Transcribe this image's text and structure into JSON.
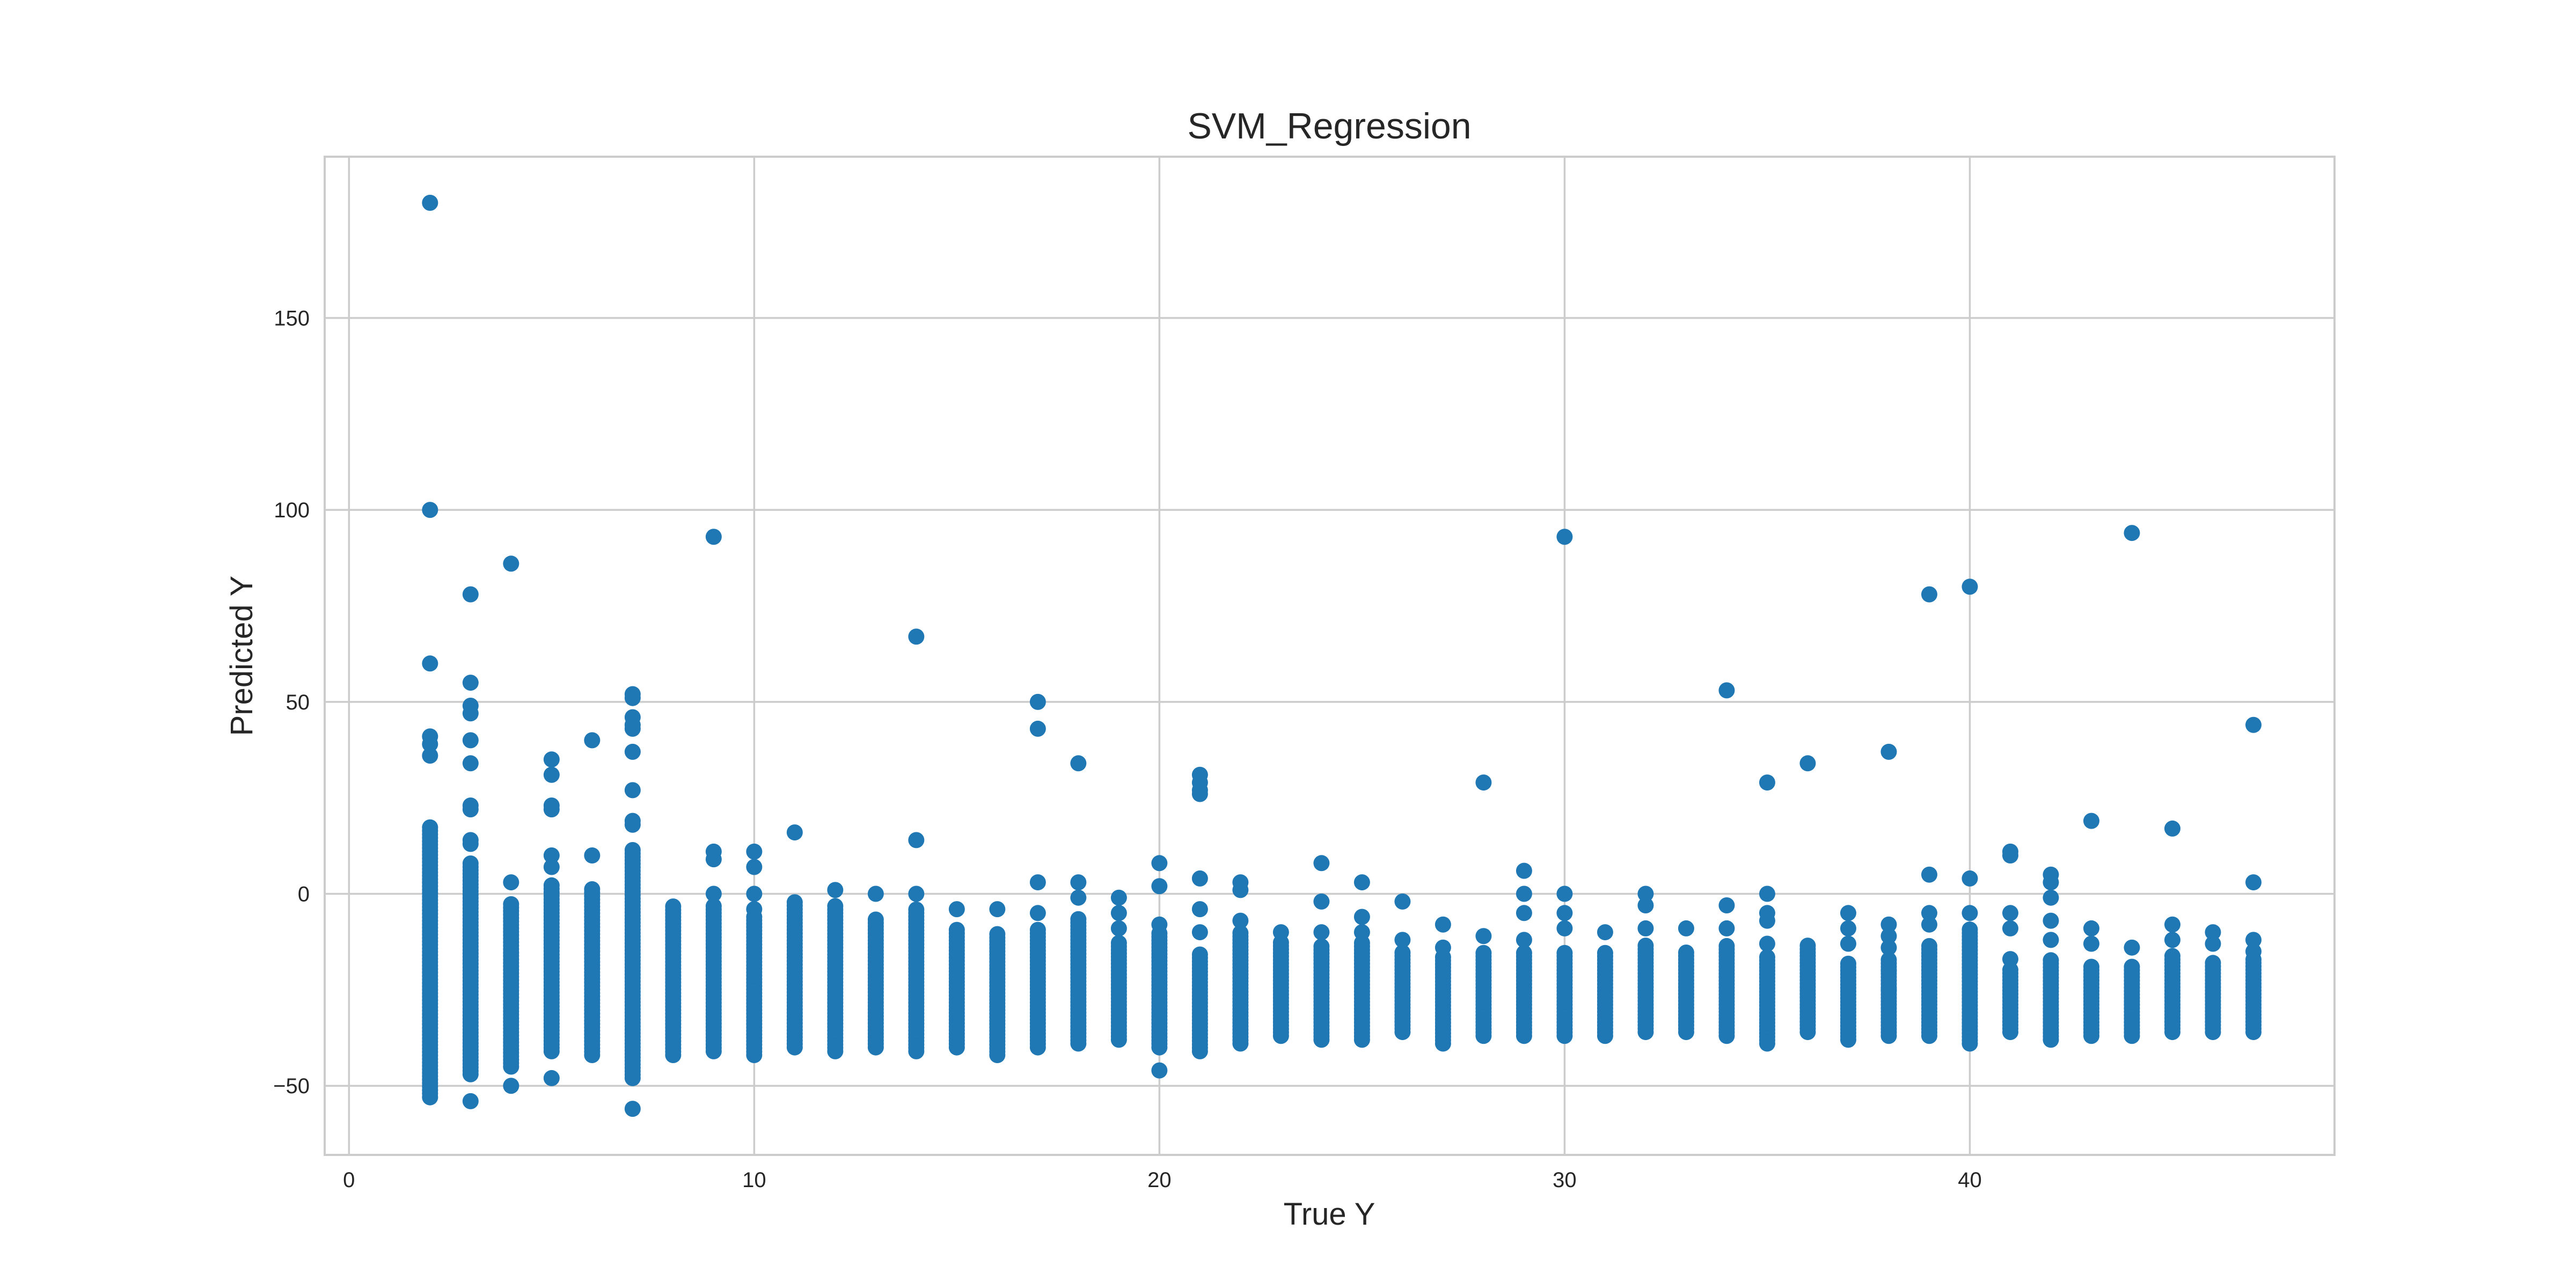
{
  "chart_data": {
    "type": "scatter",
    "title": "SVM_Regression",
    "xlabel": "True Y",
    "ylabel": "Predicted Y",
    "xlim": [
      -0.6,
      49
    ],
    "ylim": [
      -68,
      192
    ],
    "xticks": [
      0,
      10,
      20,
      30,
      40
    ],
    "yticks": [
      -50,
      0,
      50,
      100,
      150
    ],
    "grid": true,
    "color": "#1f77b4",
    "series": [
      {
        "columns": [
          {
            "x": 2,
            "low": -52,
            "high": 18,
            "outliers": [
              180,
              100,
              60,
              41,
              39,
              36,
              -53
            ]
          },
          {
            "x": 3,
            "low": -47,
            "high": 8,
            "outliers": [
              78,
              55,
              49,
              47,
              40,
              34,
              23,
              22,
              14,
              13,
              -54
            ]
          },
          {
            "x": 4,
            "low": -45,
            "high": -2,
            "outliers": [
              86,
              3,
              -50
            ]
          },
          {
            "x": 5,
            "low": -41,
            "high": 3,
            "outliers": [
              35,
              31,
              23,
              22,
              10,
              7,
              -48
            ]
          },
          {
            "x": 6,
            "low": -42,
            "high": 2,
            "outliers": [
              40,
              10
            ]
          },
          {
            "x": 7,
            "low": -48,
            "high": 12,
            "outliers": [
              52,
              51,
              46,
              44,
              43,
              37,
              27,
              19,
              18,
              -56
            ]
          },
          {
            "x": 8,
            "low": -42,
            "high": -3,
            "outliers": []
          },
          {
            "x": 9,
            "low": -41,
            "high": -3,
            "outliers": [
              93,
              11,
              9,
              0
            ]
          },
          {
            "x": 10,
            "low": -42,
            "high": -6,
            "outliers": [
              11,
              7,
              0,
              -4
            ]
          },
          {
            "x": 11,
            "low": -40,
            "high": -2,
            "outliers": [
              16
            ]
          },
          {
            "x": 12,
            "low": -41,
            "high": -3,
            "outliers": [
              1
            ]
          },
          {
            "x": 13,
            "low": -40,
            "high": -6,
            "outliers": [
              0
            ]
          },
          {
            "x": 14,
            "low": -41,
            "high": -4,
            "outliers": [
              67,
              14,
              0
            ]
          },
          {
            "x": 15,
            "low": -40,
            "high": -9,
            "outliers": [
              -4
            ]
          },
          {
            "x": 16,
            "low": -42,
            "high": -10,
            "outliers": [
              -4
            ]
          },
          {
            "x": 17,
            "low": -40,
            "high": -9,
            "outliers": [
              50,
              43,
              3,
              -5
            ]
          },
          {
            "x": 18,
            "low": -39,
            "high": -6,
            "outliers": [
              34,
              3,
              -1
            ]
          },
          {
            "x": 19,
            "low": -38,
            "high": -12,
            "outliers": [
              -1,
              -5,
              -9
            ]
          },
          {
            "x": 20,
            "low": -40,
            "high": -10,
            "outliers": [
              8,
              2,
              -8,
              -46
            ]
          },
          {
            "x": 21,
            "low": -41,
            "high": -15,
            "outliers": [
              31,
              29,
              27,
              26,
              4,
              -4,
              -10
            ]
          },
          {
            "x": 22,
            "low": -39,
            "high": -10,
            "outliers": [
              3,
              1,
              -7
            ]
          },
          {
            "x": 23,
            "low": -37,
            "high": -12,
            "outliers": [
              -10
            ]
          },
          {
            "x": 24,
            "low": -38,
            "high": -13,
            "outliers": [
              8,
              -2,
              -10
            ]
          },
          {
            "x": 25,
            "low": -38,
            "high": -12,
            "outliers": [
              3,
              -6,
              -10
            ]
          },
          {
            "x": 26,
            "low": -36,
            "high": -15,
            "outliers": [
              -2,
              -12
            ]
          },
          {
            "x": 27,
            "low": -39,
            "high": -16,
            "outliers": [
              -8,
              -14
            ]
          },
          {
            "x": 28,
            "low": -37,
            "high": -15,
            "outliers": [
              29,
              -11
            ]
          },
          {
            "x": 29,
            "low": -37,
            "high": -15,
            "outliers": [
              6,
              0,
              -5,
              -12
            ]
          },
          {
            "x": 30,
            "low": -37,
            "high": -15,
            "outliers": [
              93,
              0,
              -5,
              -9
            ]
          },
          {
            "x": 31,
            "low": -37,
            "high": -15,
            "outliers": [
              -10
            ]
          },
          {
            "x": 32,
            "low": -36,
            "high": -13,
            "outliers": [
              0,
              -3,
              -9
            ]
          },
          {
            "x": 33,
            "low": -36,
            "high": -15,
            "outliers": [
              -9
            ]
          },
          {
            "x": 34,
            "low": -37,
            "high": -13,
            "outliers": [
              53,
              -3,
              -9
            ]
          },
          {
            "x": 35,
            "low": -39,
            "high": -16,
            "outliers": [
              29,
              0,
              -5,
              -7,
              -13
            ]
          },
          {
            "x": 36,
            "low": -36,
            "high": -13,
            "outliers": [
              34
            ]
          },
          {
            "x": 37,
            "low": -38,
            "high": -18,
            "outliers": [
              -5,
              -9,
              -13
            ]
          },
          {
            "x": 38,
            "low": -37,
            "high": -17,
            "outliers": [
              37,
              -8,
              -11,
              -14,
              -20,
              -25
            ]
          },
          {
            "x": 39,
            "low": -37,
            "high": -13,
            "outliers": [
              78,
              5,
              -5,
              -8
            ]
          },
          {
            "x": 40,
            "low": -39,
            "high": -9,
            "outliers": [
              80,
              4,
              -5
            ]
          },
          {
            "x": 41,
            "low": -36,
            "high": -19,
            "outliers": [
              11,
              10,
              -5,
              -9,
              -17
            ]
          },
          {
            "x": 42,
            "low": -38,
            "high": -17,
            "outliers": [
              5,
              3,
              -1,
              -7,
              -12
            ]
          },
          {
            "x": 43,
            "low": -37,
            "high": -19,
            "outliers": [
              19,
              -9,
              -13
            ]
          },
          {
            "x": 44,
            "low": -37,
            "high": -19,
            "outliers": [
              94,
              -14
            ]
          },
          {
            "x": 45,
            "low": -36,
            "high": -16,
            "outliers": [
              17,
              -8,
              -12
            ]
          },
          {
            "x": 46,
            "low": -36,
            "high": -18,
            "outliers": [
              -10,
              -13
            ]
          },
          {
            "x": 47,
            "low": -36,
            "high": -17,
            "outliers": [
              44,
              3,
              -12,
              -15
            ]
          }
        ]
      }
    ]
  }
}
